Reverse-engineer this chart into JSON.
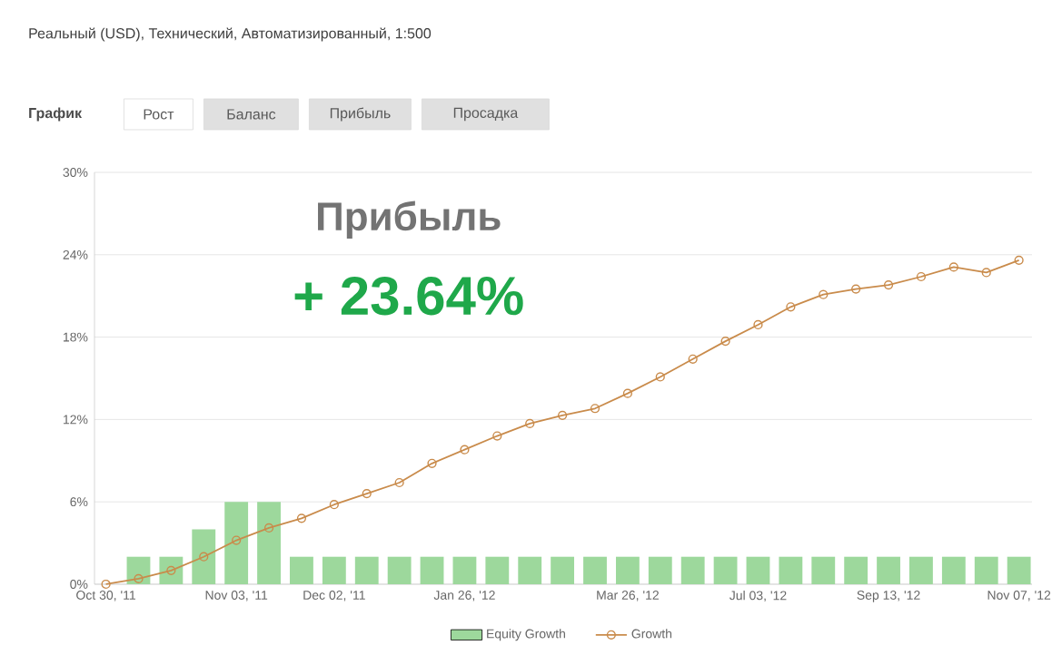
{
  "chart_data": {
    "type": "bar",
    "subtitle": "Реальный (USD), Технический, Автоматизированный, 1:500",
    "annotations": [
      "График",
      "Рост",
      "Баланс",
      "Прибыль",
      "Просадка",
      "Прибыль",
      "+ 23.64%"
    ],
    "categories": [
      "Oct 30, '11",
      null,
      null,
      null,
      "Nov 03, '11",
      null,
      null,
      "Dec 02, '11",
      null,
      null,
      null,
      "Jan 26, '12",
      null,
      null,
      null,
      null,
      "Mar 26, '12",
      null,
      null,
      null,
      "Jul 03, '12",
      null,
      null,
      null,
      "Sep 13, '12",
      null,
      null,
      null,
      "Nov 07, '12"
    ],
    "series": [
      {
        "name": "Growth",
        "type": "line",
        "color": "#c98b4b",
        "marker": "circle",
        "values": [
          0,
          0.4,
          1.0,
          2.0,
          3.2,
          4.1,
          4.8,
          5.8,
          6.6,
          7.4,
          8.8,
          9.8,
          10.8,
          11.7,
          12.3,
          12.8,
          13.9,
          15.1,
          16.4,
          17.7,
          18.9,
          20.2,
          21.1,
          21.5,
          21.8,
          22.4,
          23.1,
          22.7,
          23.6
        ]
      },
      {
        "name": "Equity Growth",
        "color": "#9dd89c",
        "values": [
          null,
          2,
          2,
          4,
          6,
          6,
          2,
          2,
          2,
          2,
          2,
          2,
          2,
          2,
          2,
          2,
          2,
          2,
          2,
          2,
          2,
          2,
          2,
          2,
          2,
          2,
          2,
          2,
          2
        ]
      }
    ],
    "ylim": [
      0,
      30
    ],
    "yticks": [
      {
        "value": 0,
        "label": "0%"
      },
      {
        "value": 6,
        "label": "6%"
      },
      {
        "value": 12,
        "label": "12%"
      },
      {
        "value": 18,
        "label": "18%"
      },
      {
        "value": 24,
        "label": "24%"
      },
      {
        "value": 30,
        "label": "30%"
      }
    ],
    "grid": "y",
    "legend": "bottom"
  }
}
